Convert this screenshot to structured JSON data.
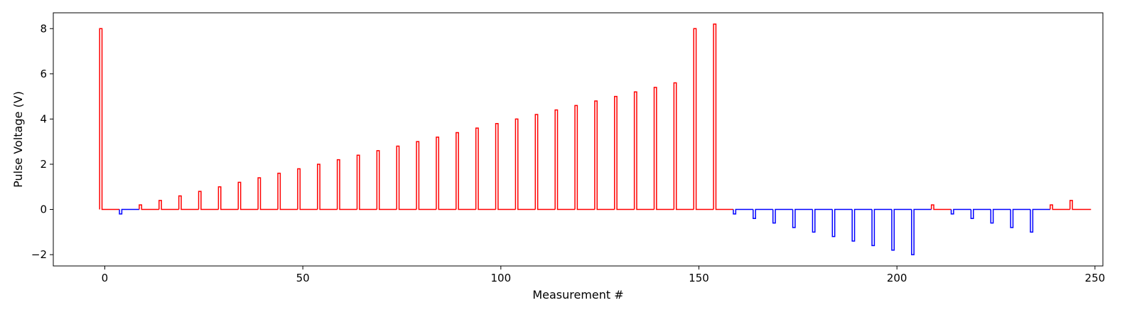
{
  "chart_data": {
    "type": "line",
    "title": "",
    "xlabel": "Measurement #",
    "ylabel": "Pulse Voltage (V)",
    "xlim": [
      -13,
      252
    ],
    "ylim": [
      -2.5,
      8.7
    ],
    "xticks": [
      0,
      50,
      100,
      150,
      200,
      250
    ],
    "yticks": [
      -2,
      0,
      2,
      4,
      6,
      8
    ],
    "ytick_labels": [
      "−2",
      "0",
      "2",
      "4",
      "6",
      "8"
    ],
    "grid": false,
    "pulse_width": 0.6,
    "baseline": 0,
    "x_end": 249,
    "colors": {
      "positive": "#ff0000",
      "negative": "#0000ff"
    },
    "pulses": [
      {
        "x": -1,
        "v": 8.0
      },
      {
        "x": 4,
        "v": -0.2
      },
      {
        "x": 9,
        "v": 0.2
      },
      {
        "x": 14,
        "v": 0.4
      },
      {
        "x": 19,
        "v": 0.6
      },
      {
        "x": 24,
        "v": 0.8
      },
      {
        "x": 29,
        "v": 1.0
      },
      {
        "x": 34,
        "v": 1.2
      },
      {
        "x": 39,
        "v": 1.4
      },
      {
        "x": 44,
        "v": 1.6
      },
      {
        "x": 49,
        "v": 1.8
      },
      {
        "x": 54,
        "v": 2.0
      },
      {
        "x": 59,
        "v": 2.2
      },
      {
        "x": 64,
        "v": 2.4
      },
      {
        "x": 69,
        "v": 2.6
      },
      {
        "x": 74,
        "v": 2.8
      },
      {
        "x": 79,
        "v": 3.0
      },
      {
        "x": 84,
        "v": 3.2
      },
      {
        "x": 89,
        "v": 3.4
      },
      {
        "x": 94,
        "v": 3.6
      },
      {
        "x": 99,
        "v": 3.8
      },
      {
        "x": 104,
        "v": 4.0
      },
      {
        "x": 109,
        "v": 4.2
      },
      {
        "x": 114,
        "v": 4.4
      },
      {
        "x": 119,
        "v": 4.6
      },
      {
        "x": 124,
        "v": 4.8
      },
      {
        "x": 129,
        "v": 5.0
      },
      {
        "x": 134,
        "v": 5.2
      },
      {
        "x": 139,
        "v": 5.4
      },
      {
        "x": 144,
        "v": 5.6
      },
      {
        "x": 149,
        "v": 8.0
      },
      {
        "x": 154,
        "v": 8.2
      },
      {
        "x": 159,
        "v": -0.2
      },
      {
        "x": 164,
        "v": -0.4
      },
      {
        "x": 169,
        "v": -0.6
      },
      {
        "x": 174,
        "v": -0.8
      },
      {
        "x": 179,
        "v": -1.0
      },
      {
        "x": 184,
        "v": -1.2
      },
      {
        "x": 189,
        "v": -1.4
      },
      {
        "x": 194,
        "v": -1.6
      },
      {
        "x": 199,
        "v": -1.8
      },
      {
        "x": 204,
        "v": -2.0
      },
      {
        "x": 209,
        "v": 0.2
      },
      {
        "x": 214,
        "v": -0.2
      },
      {
        "x": 219,
        "v": -0.4
      },
      {
        "x": 224,
        "v": -0.6
      },
      {
        "x": 229,
        "v": -0.8
      },
      {
        "x": 234,
        "v": -1.0
      },
      {
        "x": 239,
        "v": 0.2
      },
      {
        "x": 244,
        "v": 0.4
      }
    ]
  }
}
